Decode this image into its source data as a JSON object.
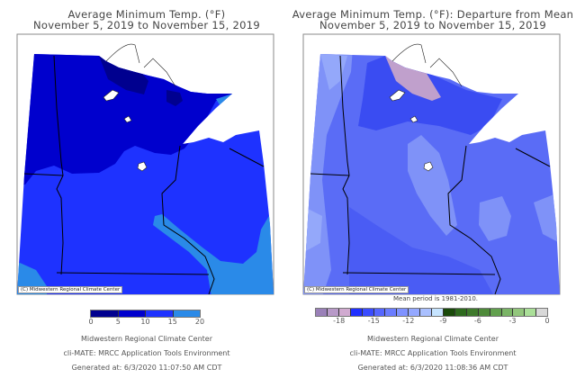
{
  "left_map": {
    "title_line1": "Average Minimum Temp. (°F)",
    "title_line2": "November 5, 2019 to November 15, 2019",
    "copyright": "(C) Midwestern Regional Climate Center",
    "legend": {
      "ticks": [
        "0",
        "5",
        "10",
        "15",
        "20"
      ],
      "colors": [
        "#00008f",
        "#0000cd",
        "#1e32ff",
        "#2a8ae8"
      ]
    },
    "footer": {
      "line1": "Midwestern Regional Climate Center",
      "line2": "cli-MATE: MRCC Application Tools Environment",
      "line3": "Generated at: 6/3/2020 11:07:50 AM CDT"
    }
  },
  "right_map": {
    "title_line1": "Average Minimum Temp. (°F): Departure from Mean",
    "title_line2": "November 5, 2019 to November 15, 2019",
    "copyright": "(C) Midwestern Regional Climate Center",
    "mean_period": "Mean period is 1981-2010.",
    "legend": {
      "ticks": [
        "-18",
        "-15",
        "-12",
        "-9",
        "-6",
        "-3",
        "0"
      ],
      "tick_values": [
        -18,
        -15,
        -12,
        -9,
        -6,
        -3,
        0
      ],
      "range": [
        -20,
        0
      ],
      "colors": [
        "#9a80b8",
        "#b89ac8",
        "#d0aad0",
        "#2030ff",
        "#3a4cff",
        "#5566ff",
        "#6a7cff",
        "#7f92ff",
        "#94a8ff",
        "#aac0ff",
        "#c6e4ff",
        "#1a4a0a",
        "#2e6a1e",
        "#3f7a2c",
        "#4e8a3a",
        "#62a04e",
        "#7ab466",
        "#92c67c",
        "#aadf98",
        "#d8d8d8"
      ]
    },
    "footer": {
      "line1": "Midwestern Regional Climate Center",
      "line2": "cli-MATE: MRCC Application Tools Environment",
      "line3": "Generated at: 6/3/2020 11:08:36 AM CDT"
    }
  }
}
